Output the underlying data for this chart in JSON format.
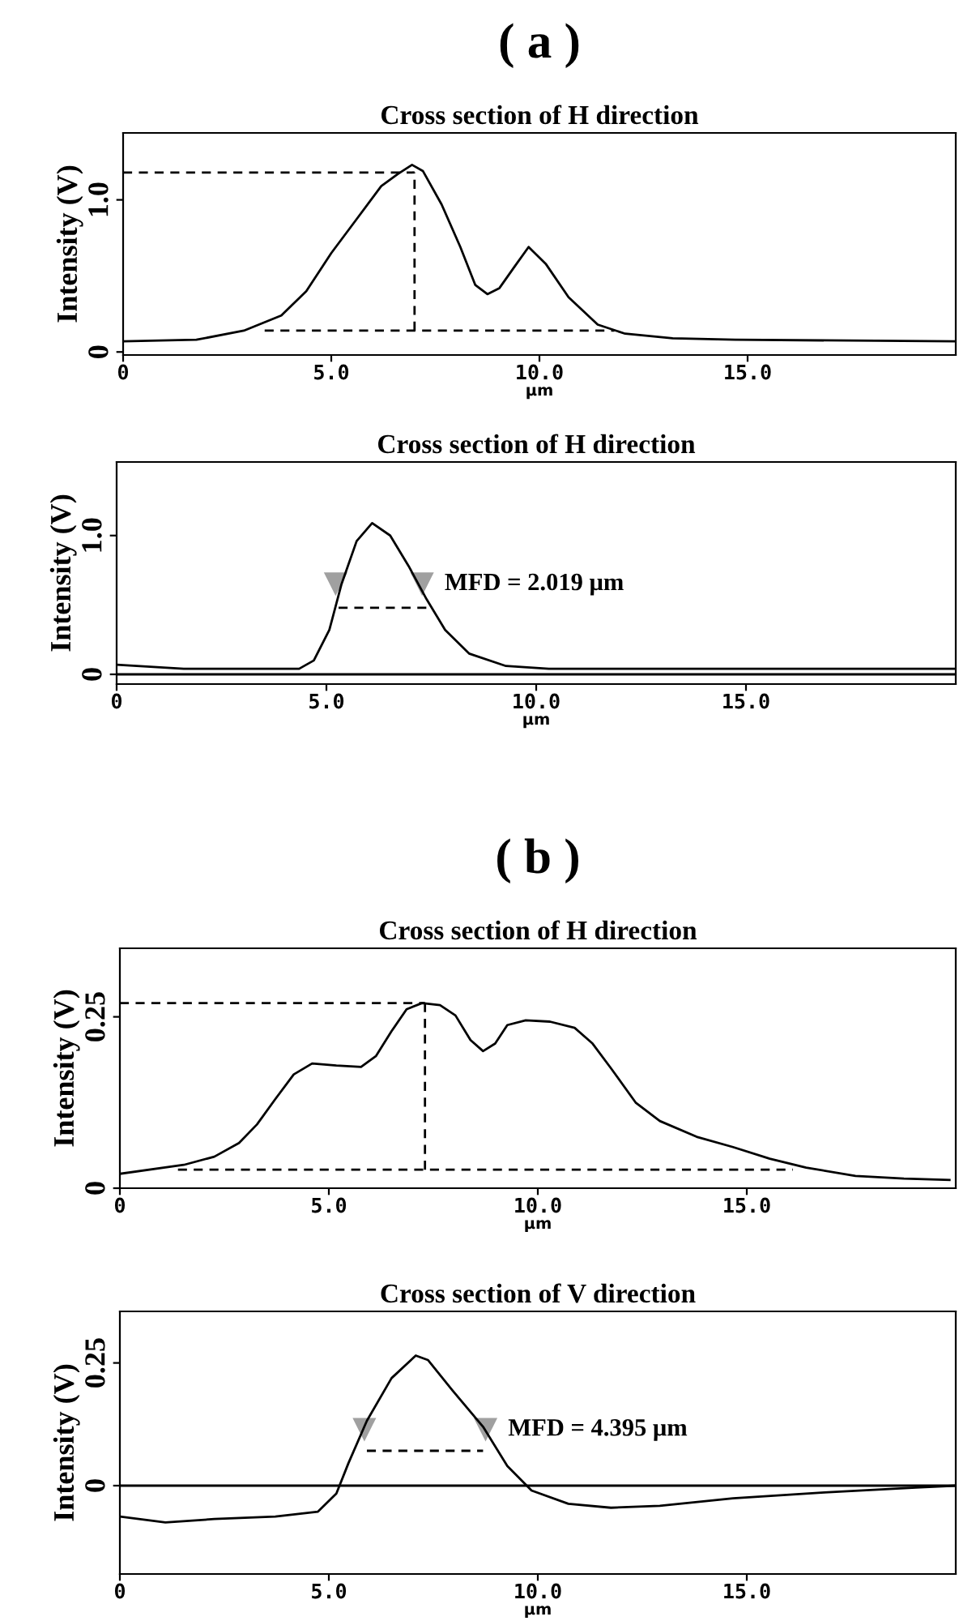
{
  "chart_data": [
    {
      "type": "line",
      "title": "( a )",
      "subtitle": "Cross section of H direction",
      "xlabel": "μm",
      "ylabel": "Intensity (V)",
      "xlim": [
        0,
        20
      ],
      "ylim": [
        -0.02,
        1.44
      ],
      "xticks": [
        0,
        {
          "value": 5,
          "label": "5.0"
        },
        {
          "value": 10,
          "label": "10.0"
        },
        {
          "value": 15,
          "label": "15.0"
        }
      ],
      "yticks": [
        0,
        {
          "value": 1,
          "label": "1.0"
        }
      ],
      "series": [
        {
          "color": "#000000",
          "x": [
            0,
            1.76,
            2.9,
            3.8,
            4.4,
            5.0,
            5.6,
            6.2,
            6.6,
            6.94,
            7.2,
            7.65,
            8.1,
            8.46,
            8.75,
            9.04,
            9.4,
            9.74,
            10.15,
            10.7,
            11.4,
            12.06,
            13.2,
            14.7,
            20
          ],
          "values": [
            0.07,
            0.08,
            0.14,
            0.24,
            0.4,
            0.65,
            0.87,
            1.09,
            1.17,
            1.23,
            1.19,
            0.97,
            0.69,
            0.44,
            0.38,
            0.42,
            0.56,
            0.69,
            0.58,
            0.36,
            0.18,
            0.12,
            0.09,
            0.08,
            0.07
          ]
        },
        {
          "color": "#000000",
          "line_style": "dashed",
          "x": [
            0,
            7.0
          ],
          "values": [
            1.18,
            1.18
          ]
        },
        {
          "color": "#000000",
          "line_style": "dashed",
          "x": [
            7.0,
            7.0
          ],
          "values": [
            0.14,
            1.18
          ]
        },
        {
          "color": "#000000",
          "line_style": "dashed",
          "x": [
            3.4,
            11.8
          ],
          "values": [
            0.14,
            0.14
          ]
        }
      ]
    },
    {
      "type": "line",
      "title": "Cross section of H direction",
      "xlabel": "μm",
      "ylabel": "Intensity (V)",
      "xlim": [
        0,
        20
      ],
      "ylim": [
        -0.07,
        1.53
      ],
      "xticks": [
        0,
        {
          "value": 5,
          "label": "5.0"
        },
        {
          "value": 10,
          "label": "10.0"
        },
        {
          "value": 15,
          "label": "15.0"
        }
      ],
      "yticks": [
        0,
        {
          "value": 1,
          "label": "1.0"
        }
      ],
      "ref_lines": [
        {
          "axis": "y",
          "value": 0,
          "color": "#000000"
        }
      ],
      "annotations": [
        "MFD = 2.019 μm"
      ],
      "series": [
        {
          "color": "#000000",
          "x": [
            0,
            1.6,
            4.35,
            4.7,
            5.07,
            5.36,
            5.72,
            6.09,
            6.52,
            6.96,
            7.39,
            7.83,
            8.4,
            9.28,
            10.3,
            20
          ],
          "values": [
            0.07,
            0.04,
            0.04,
            0.1,
            0.32,
            0.65,
            0.96,
            1.09,
            1.0,
            0.78,
            0.54,
            0.32,
            0.15,
            0.06,
            0.04,
            0.04
          ]
        },
        {
          "color": "#000000",
          "line_style": "dashed",
          "x": [
            5.29,
            7.39
          ],
          "values": [
            0.48,
            0.48
          ]
        },
        {
          "type": "scatter",
          "color": "#a0a0a0",
          "marker": "triangle",
          "x": [
            5.22,
            7.28
          ],
          "values": [
            0.65,
            0.65
          ]
        }
      ]
    },
    {
      "type": "line",
      "title": "( b )",
      "subtitle": "Cross section of H direction",
      "xlabel": "μm",
      "ylabel": "Intensity (V)",
      "xlim": [
        0,
        20
      ],
      "ylim": [
        0,
        0.35
      ],
      "xticks": [
        0,
        {
          "value": 5,
          "label": "5.0"
        },
        {
          "value": 10,
          "label": "10.0"
        },
        {
          "value": 15,
          "label": "15.0"
        }
      ],
      "yticks": [
        0,
        0.25
      ],
      "series": [
        {
          "color": "#000000",
          "x": [
            0,
            1.53,
            2.26,
            2.85,
            3.28,
            3.72,
            4.16,
            4.6,
            5.18,
            5.77,
            6.13,
            6.5,
            6.86,
            7.23,
            7.66,
            8.03,
            8.39,
            8.69,
            8.98,
            9.27,
            9.71,
            10.29,
            10.88,
            11.31,
            11.75,
            12.34,
            12.92,
            13.8,
            14.67,
            15.55,
            16.42,
            17.6,
            18.76,
            19.85
          ],
          "values": [
            0.021,
            0.034,
            0.046,
            0.066,
            0.093,
            0.13,
            0.166,
            0.182,
            0.179,
            0.177,
            0.193,
            0.229,
            0.261,
            0.27,
            0.267,
            0.252,
            0.216,
            0.2,
            0.211,
            0.238,
            0.245,
            0.243,
            0.234,
            0.211,
            0.175,
            0.125,
            0.098,
            0.075,
            0.06,
            0.043,
            0.03,
            0.018,
            0.014,
            0.012
          ]
        },
        {
          "color": "#000000",
          "line_style": "dashed",
          "x": [
            0,
            7.3
          ],
          "values": [
            0.27,
            0.27
          ]
        },
        {
          "color": "#000000",
          "line_style": "dashed",
          "x": [
            7.3,
            7.3
          ],
          "values": [
            0.027,
            0.27
          ]
        },
        {
          "color": "#000000",
          "line_style": "dashed",
          "x": [
            1.39,
            16.1
          ],
          "values": [
            0.027,
            0.027
          ]
        }
      ]
    },
    {
      "type": "line",
      "title": "Cross section of V direction",
      "xlabel": "μm",
      "ylabel": "Intensity (V)",
      "xlim": [
        0,
        20
      ],
      "ylim": [
        -0.18,
        0.355
      ],
      "xticks": [
        0,
        {
          "value": 5,
          "label": "5.0"
        },
        {
          "value": 10,
          "label": "10.0"
        },
        {
          "value": 15,
          "label": "15.0"
        }
      ],
      "yticks": [
        0,
        0.25
      ],
      "ref_lines": [
        {
          "axis": "y",
          "value": 0,
          "color": "#000000"
        }
      ],
      "annotations": [
        "MFD = 4.395 μm"
      ],
      "series": [
        {
          "color": "#000000",
          "x": [
            0,
            1.09,
            2.26,
            3.72,
            4.74,
            5.18,
            5.47,
            5.91,
            6.5,
            7.08,
            7.37,
            7.96,
            8.69,
            9.27,
            9.85,
            10.73,
            11.75,
            12.92,
            14.67,
            16.86,
            19.05,
            20
          ],
          "values": [
            -0.063,
            -0.075,
            -0.068,
            -0.063,
            -0.053,
            -0.016,
            0.046,
            0.132,
            0.219,
            0.265,
            0.256,
            0.194,
            0.12,
            0.04,
            -0.01,
            -0.037,
            -0.045,
            -0.041,
            -0.026,
            -0.014,
            -0.004,
            0
          ]
        },
        {
          "color": "#000000",
          "line_style": "dashed",
          "x": [
            5.91,
            8.69
          ],
          "values": [
            0.071,
            0.071
          ]
        },
        {
          "type": "scatter",
          "color": "#a0a0a0",
          "marker": "triangle",
          "x": [
            5.85,
            8.75
          ],
          "values": [
            0.114,
            0.114
          ]
        }
      ]
    }
  ]
}
